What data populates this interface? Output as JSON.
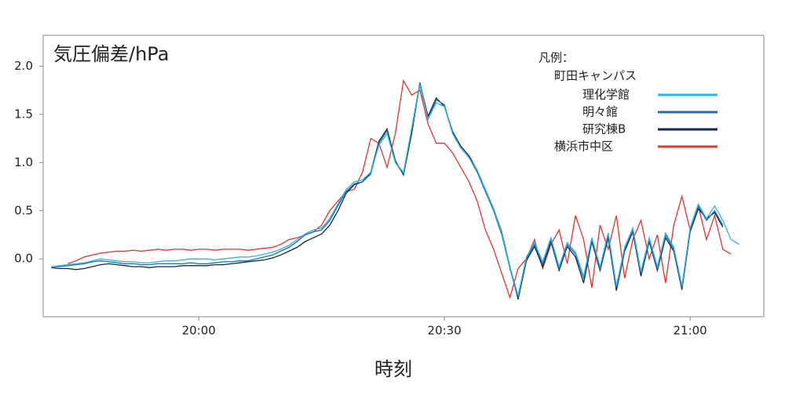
{
  "chart_data": {
    "type": "line",
    "title": "気圧偏差/hPa",
    "x_label": "時刻",
    "legend_title": "凡例：",
    "legend_group": "町田キャンパス",
    "legend_position": "upper right",
    "x": [
      "19:42",
      "19:43",
      "19:44",
      "19:45",
      "19:46",
      "19:47",
      "19:48",
      "19:49",
      "19:50",
      "19:51",
      "19:52",
      "19:53",
      "19:54",
      "19:55",
      "19:56",
      "19:57",
      "19:58",
      "19:59",
      "20:00",
      "20:01",
      "20:02",
      "20:03",
      "20:04",
      "20:05",
      "20:06",
      "20:07",
      "20:08",
      "20:09",
      "20:10",
      "20:11",
      "20:12",
      "20:13",
      "20:14",
      "20:15",
      "20:16",
      "20:17",
      "20:18",
      "20:19",
      "20:20",
      "20:21",
      "20:22",
      "20:23",
      "20:24",
      "20:25",
      "20:26",
      "20:27",
      "20:28",
      "20:29",
      "20:30",
      "20:31",
      "20:32",
      "20:33",
      "20:34",
      "20:35",
      "20:36",
      "20:37",
      "20:38",
      "20:39",
      "20:40",
      "20:41",
      "20:42",
      "20:43",
      "20:44",
      "20:45",
      "20:46",
      "20:47",
      "20:48",
      "20:49",
      "20:50",
      "20:51",
      "20:52",
      "20:53",
      "20:54",
      "20:55",
      "20:56",
      "20:57",
      "20:58",
      "20:59",
      "21:00",
      "21:01",
      "21:02",
      "21:03",
      "21:04",
      "21:05",
      "21:06"
    ],
    "xlim": [
      "19:41",
      "21:09"
    ],
    "xticks": [
      "20:00",
      "20:30",
      "21:00"
    ],
    "ylim": [
      -0.6,
      2.32
    ],
    "yticks": [
      {
        "value": 0,
        "label": "0.0"
      },
      0.5,
      {
        "value": 1,
        "label": "1.0"
      },
      1.5,
      {
        "value": 2,
        "label": "2.0"
      }
    ],
    "series": [
      {
        "name": "理化学館",
        "color": "#2eb4e8",
        "values": [
          -0.08,
          -0.07,
          -0.06,
          -0.05,
          -0.04,
          -0.02,
          0.0,
          -0.01,
          -0.02,
          -0.03,
          -0.03,
          -0.04,
          -0.04,
          -0.03,
          -0.02,
          -0.02,
          -0.01,
          0.0,
          0.0,
          0.0,
          -0.01,
          0.0,
          0.01,
          0.02,
          0.02,
          0.03,
          0.05,
          0.07,
          0.1,
          0.14,
          0.2,
          0.26,
          0.3,
          0.32,
          0.42,
          0.57,
          0.72,
          0.8,
          0.82,
          0.9,
          1.18,
          1.3,
          1.0,
          0.9,
          1.35,
          1.8,
          1.45,
          1.62,
          1.58,
          1.3,
          1.15,
          1.05,
          0.92,
          0.72,
          0.52,
          0.27,
          -0.08,
          -0.38,
          0.02,
          0.17,
          -0.03,
          0.22,
          -0.08,
          0.17,
          0.07,
          -0.18,
          0.22,
          -0.08,
          0.27,
          -0.28,
          0.12,
          0.32,
          -0.13,
          0.22,
          -0.08,
          0.27,
          0.12,
          -0.28,
          0.32,
          0.57,
          0.42,
          0.55,
          0.4,
          0.2,
          0.15
        ]
      },
      {
        "name": "明々館",
        "color": "#1f6cb0",
        "values": [
          -0.08,
          -0.08,
          -0.07,
          -0.06,
          -0.05,
          -0.03,
          -0.02,
          -0.03,
          -0.04,
          -0.05,
          -0.05,
          -0.06,
          -0.06,
          -0.05,
          -0.05,
          -0.05,
          -0.05,
          -0.04,
          -0.05,
          -0.05,
          -0.04,
          -0.03,
          -0.03,
          -0.02,
          -0.02,
          0.0,
          0.02,
          0.04,
          0.08,
          0.12,
          0.18,
          0.25,
          0.28,
          0.3,
          0.4,
          0.55,
          0.7,
          0.78,
          0.8,
          0.88,
          1.2,
          1.33,
          1.0,
          0.88,
          1.35,
          1.83,
          1.45,
          1.65,
          1.6,
          1.3,
          1.15,
          1.05,
          0.9,
          0.7,
          0.5,
          0.25,
          -0.1,
          -0.4,
          0.0,
          0.15,
          -0.05,
          0.2,
          -0.1,
          0.15,
          0.05,
          -0.2,
          0.2,
          -0.1,
          0.25,
          -0.3,
          0.1,
          0.3,
          -0.15,
          0.2,
          -0.1,
          0.25,
          0.1,
          -0.3,
          0.3,
          0.55,
          0.4,
          0.5,
          0.35,
          null,
          null
        ]
      },
      {
        "name": "研究棟B",
        "color": "#14264d",
        "values": [
          -0.09,
          -0.1,
          -0.1,
          -0.11,
          -0.1,
          -0.08,
          -0.06,
          -0.05,
          -0.06,
          -0.07,
          -0.08,
          -0.08,
          -0.09,
          -0.08,
          -0.08,
          -0.08,
          -0.07,
          -0.07,
          -0.07,
          -0.07,
          -0.06,
          -0.06,
          -0.05,
          -0.04,
          -0.03,
          -0.02,
          -0.01,
          0.01,
          0.04,
          0.08,
          0.12,
          0.18,
          0.22,
          0.26,
          0.35,
          0.5,
          0.68,
          0.77,
          0.8,
          0.9,
          1.22,
          1.35,
          1.02,
          0.87,
          1.3,
          1.82,
          1.48,
          1.67,
          1.58,
          1.32,
          1.17,
          1.07,
          0.92,
          0.72,
          0.52,
          0.28,
          -0.08,
          -0.42,
          -0.02,
          0.13,
          -0.08,
          0.18,
          -0.12,
          0.13,
          0.02,
          -0.25,
          0.18,
          -0.12,
          0.22,
          -0.33,
          0.08,
          0.28,
          -0.18,
          0.18,
          -0.12,
          0.22,
          0.08,
          -0.32,
          0.28,
          0.52,
          0.42,
          0.48,
          0.33,
          null,
          null
        ]
      },
      {
        "name": "横浜市中区",
        "color": "#e2332e",
        "values": [
          null,
          null,
          -0.05,
          -0.02,
          0.02,
          0.04,
          0.06,
          0.07,
          0.08,
          0.08,
          0.09,
          0.08,
          0.09,
          0.1,
          0.09,
          0.1,
          0.1,
          0.09,
          0.1,
          0.1,
          0.09,
          0.1,
          0.1,
          0.1,
          0.09,
          0.1,
          0.11,
          0.12,
          0.15,
          0.2,
          0.22,
          0.25,
          0.28,
          0.35,
          0.5,
          0.6,
          0.7,
          0.72,
          0.9,
          1.25,
          1.2,
          0.95,
          1.3,
          1.85,
          1.7,
          1.75,
          1.4,
          1.2,
          1.2,
          1.1,
          0.95,
          0.8,
          0.6,
          0.3,
          0.1,
          -0.15,
          -0.4,
          -0.1,
          0.0,
          0.2,
          -0.1,
          0.15,
          0.3,
          -0.05,
          0.45,
          0.2,
          -0.3,
          0.35,
          0.1,
          0.45,
          -0.2,
          0.2,
          0.4,
          0.0,
          0.25,
          -0.25,
          0.35,
          0.65,
          0.3,
          0.55,
          0.2,
          0.45,
          0.1,
          0.05,
          null
        ]
      }
    ]
  }
}
